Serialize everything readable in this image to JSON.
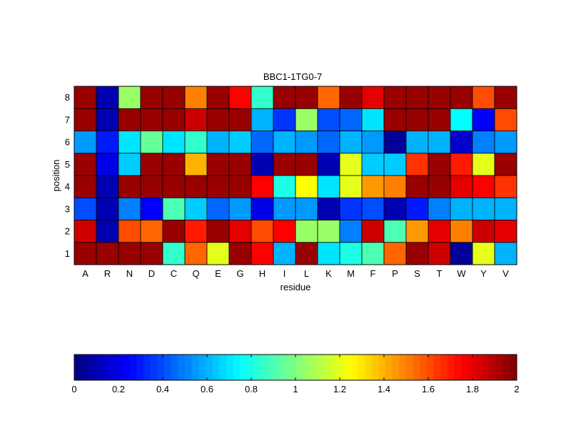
{
  "chart_data": {
    "type": "heatmap",
    "title": "BBC1-1TG0-7",
    "xlabel": "residue",
    "ylabel": "position",
    "x_categories": [
      "A",
      "R",
      "N",
      "D",
      "C",
      "Q",
      "E",
      "G",
      "H",
      "I",
      "L",
      "K",
      "M",
      "F",
      "P",
      "S",
      "T",
      "W",
      "Y",
      "V"
    ],
    "y_categories": [
      "1",
      "2",
      "3",
      "4",
      "5",
      "6",
      "7",
      "8"
    ],
    "values": [
      [
        1.95,
        1.95,
        1.95,
        1.95,
        0.85,
        1.55,
        1.2,
        1.95,
        1.75,
        0.6,
        1.95,
        0.7,
        0.8,
        0.9,
        1.55,
        1.95,
        1.85,
        0.05,
        1.2,
        0.6
      ],
      [
        1.85,
        0.1,
        1.6,
        1.55,
        1.95,
        1.7,
        1.95,
        1.8,
        1.6,
        1.75,
        1.05,
        1.05,
        0.5,
        1.85,
        0.9,
        1.45,
        1.8,
        1.5,
        1.85,
        1.8
      ],
      [
        0.4,
        0.1,
        0.5,
        0.25,
        0.9,
        0.65,
        0.45,
        0.55,
        0.2,
        0.55,
        0.55,
        0.1,
        0.35,
        0.4,
        0.1,
        0.3,
        0.5,
        0.6,
        0.6,
        0.6
      ],
      [
        1.95,
        0.1,
        1.95,
        1.95,
        1.95,
        1.95,
        1.95,
        1.95,
        1.75,
        0.8,
        1.25,
        0.7,
        1.2,
        1.45,
        1.5,
        1.95,
        1.95,
        1.8,
        1.75,
        1.65
      ],
      [
        1.95,
        0.2,
        0.65,
        1.95,
        1.95,
        1.4,
        1.95,
        1.95,
        0.1,
        1.95,
        1.95,
        0.1,
        1.2,
        0.65,
        0.65,
        1.65,
        1.95,
        1.7,
        1.2,
        1.95
      ],
      [
        0.55,
        0.3,
        0.7,
        0.95,
        0.7,
        0.85,
        0.6,
        0.65,
        0.45,
        0.6,
        0.55,
        0.45,
        0.6,
        0.55,
        0.05,
        0.6,
        0.6,
        0.15,
        0.5,
        0.55
      ],
      [
        1.95,
        0.1,
        1.95,
        1.95,
        1.95,
        1.85,
        1.95,
        1.95,
        0.6,
        0.35,
        1.05,
        0.4,
        0.45,
        0.7,
        1.95,
        1.95,
        1.95,
        0.75,
        0.25,
        1.6
      ],
      [
        1.95,
        0.1,
        1.05,
        1.95,
        1.95,
        1.5,
        1.95,
        1.75,
        0.85,
        1.95,
        1.95,
        1.55,
        1.95,
        1.8,
        1.95,
        1.95,
        1.95,
        1.95,
        1.6,
        1.95
      ]
    ],
    "colormap": "jet",
    "colorbar": {
      "range": [
        0,
        2
      ],
      "ticks": [
        "0",
        "0.2",
        "0.4",
        "0.6",
        "0.8",
        "1",
        "1.2",
        "1.4",
        "1.6",
        "1.8",
        "2"
      ],
      "orientation": "horizontal",
      "placement": "bottom"
    }
  }
}
